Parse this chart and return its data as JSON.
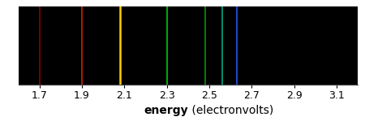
{
  "xlim": [
    1.6,
    3.2
  ],
  "xticks": [
    1.7,
    1.9,
    2.1,
    2.3,
    2.5,
    2.7,
    2.9,
    3.1
  ],
  "spectral_lines": [
    {
      "x": 1.7,
      "color": "#880000",
      "lw": 1.2
    },
    {
      "x": 1.9,
      "color": "#CC2200",
      "lw": 1.2
    },
    {
      "x": 2.08,
      "color": "#FFCC00",
      "lw": 1.8
    },
    {
      "x": 2.3,
      "color": "#00CC00",
      "lw": 1.2
    },
    {
      "x": 2.48,
      "color": "#009900",
      "lw": 1.2
    },
    {
      "x": 2.56,
      "color": "#00AA88",
      "lw": 1.2
    },
    {
      "x": 2.63,
      "color": "#2255EE",
      "lw": 1.2
    }
  ],
  "spectrum_bg": "#000000",
  "fig_bg": "#ffffff",
  "xlabel_bold": "energy",
  "xlabel_normal": " (electronvolts)",
  "xlabel_fontsize": 10,
  "tick_fontsize": 9
}
